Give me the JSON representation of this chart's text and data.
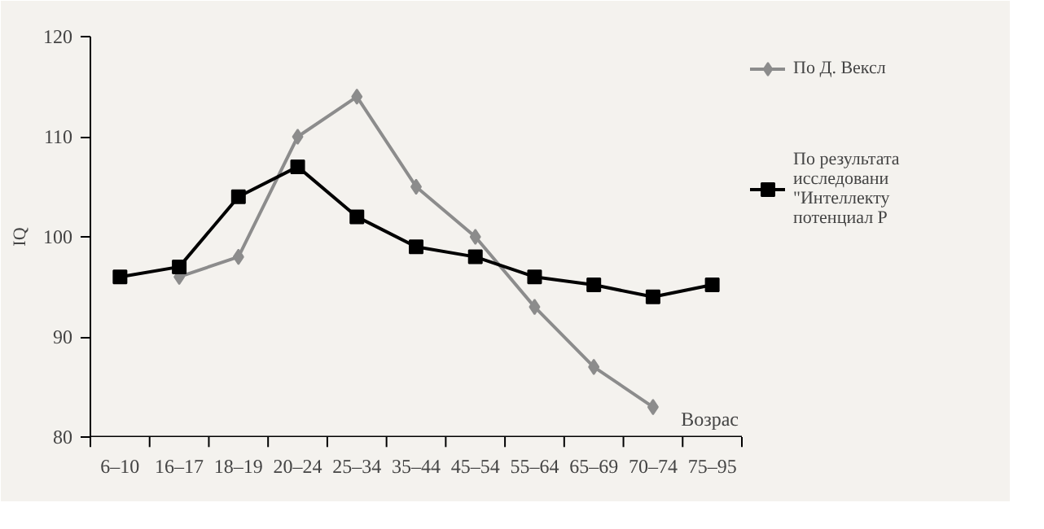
{
  "chart_data": {
    "type": "line",
    "xlabel": "Возрас",
    "ylabel": "IQ",
    "categories": [
      "6–10",
      "16–17",
      "18–19",
      "20–24",
      "25–34",
      "35–44",
      "45–54",
      "55–64",
      "65–69",
      "70–74",
      "75–95"
    ],
    "series": [
      {
        "name": "По Д. Вексл",
        "color": "#8c8c8c",
        "marker": "diamond",
        "values": [
          null,
          96,
          98,
          110,
          114,
          105,
          100,
          93,
          87,
          83,
          null
        ]
      },
      {
        "name": "По результата\nисследовани\n\"Интеллекту\nпотенциал Р",
        "color": "#000000",
        "marker": "square",
        "values": [
          96,
          97,
          104,
          107,
          102,
          99,
          98,
          96,
          95.2,
          94,
          95.2
        ]
      }
    ],
    "ylim": [
      80,
      120
    ],
    "yticks": [
      80,
      90,
      100,
      110,
      120
    ],
    "grid": false,
    "legend": "top right"
  }
}
